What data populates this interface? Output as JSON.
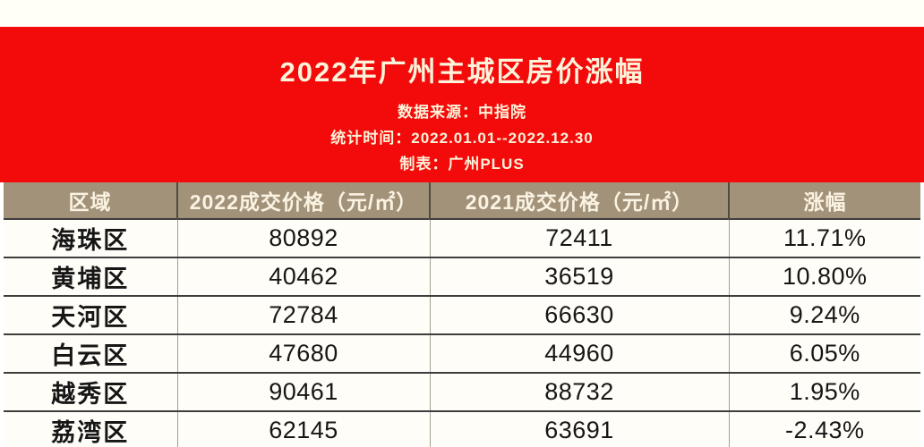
{
  "banner": {
    "title": "2022年广州主城区房价涨幅",
    "source_line": "数据来源：中指院",
    "period_line": "统计时间：2022.01.01--2022.12.30",
    "author_line": "制表：广州PLUS",
    "bg_color": "#f30b0b",
    "text_color": "#fcf3da"
  },
  "table": {
    "header": {
      "bg_color": "#a3927a",
      "text_color": "#fbf3e2",
      "columns": [
        "区域",
        "2022成交价格（元/㎡）",
        "2021成交价格（元/㎡）",
        "涨幅"
      ]
    },
    "rows": [
      {
        "district": "海珠区",
        "price_2022": "80892",
        "price_2021": "72411",
        "change": "11.71%"
      },
      {
        "district": "黄埔区",
        "price_2022": "40462",
        "price_2021": "36519",
        "change": "10.80%"
      },
      {
        "district": "天河区",
        "price_2022": "72784",
        "price_2021": "66630",
        "change": "9.24%"
      },
      {
        "district": "白云区",
        "price_2022": "47680",
        "price_2021": "44960",
        "change": "6.05%"
      },
      {
        "district": "越秀区",
        "price_2022": "90461",
        "price_2021": "88732",
        "change": "1.95%"
      },
      {
        "district": "荔湾区",
        "price_2022": "62145",
        "price_2021": "63691",
        "change": "-2.43%"
      }
    ]
  },
  "chart_data": {
    "type": "table",
    "title": "2022年广州主城区房价涨幅",
    "categories": [
      "海珠区",
      "黄埔区",
      "天河区",
      "白云区",
      "越秀区",
      "荔湾区"
    ],
    "series": [
      {
        "name": "2022成交价格（元/㎡）",
        "values": [
          80892,
          40462,
          72784,
          47680,
          90461,
          62145
        ]
      },
      {
        "name": "2021成交价格（元/㎡）",
        "values": [
          72411,
          36519,
          66630,
          44960,
          88732,
          63691
        ]
      },
      {
        "name": "涨幅",
        "values": [
          "11.71%",
          "10.80%",
          "9.24%",
          "6.05%",
          "1.95%",
          "-2.43%"
        ]
      }
    ],
    "notes": [
      "数据来源：中指院",
      "统计时间：2022.01.01--2022.12.30",
      "制表：广州PLUS"
    ]
  }
}
